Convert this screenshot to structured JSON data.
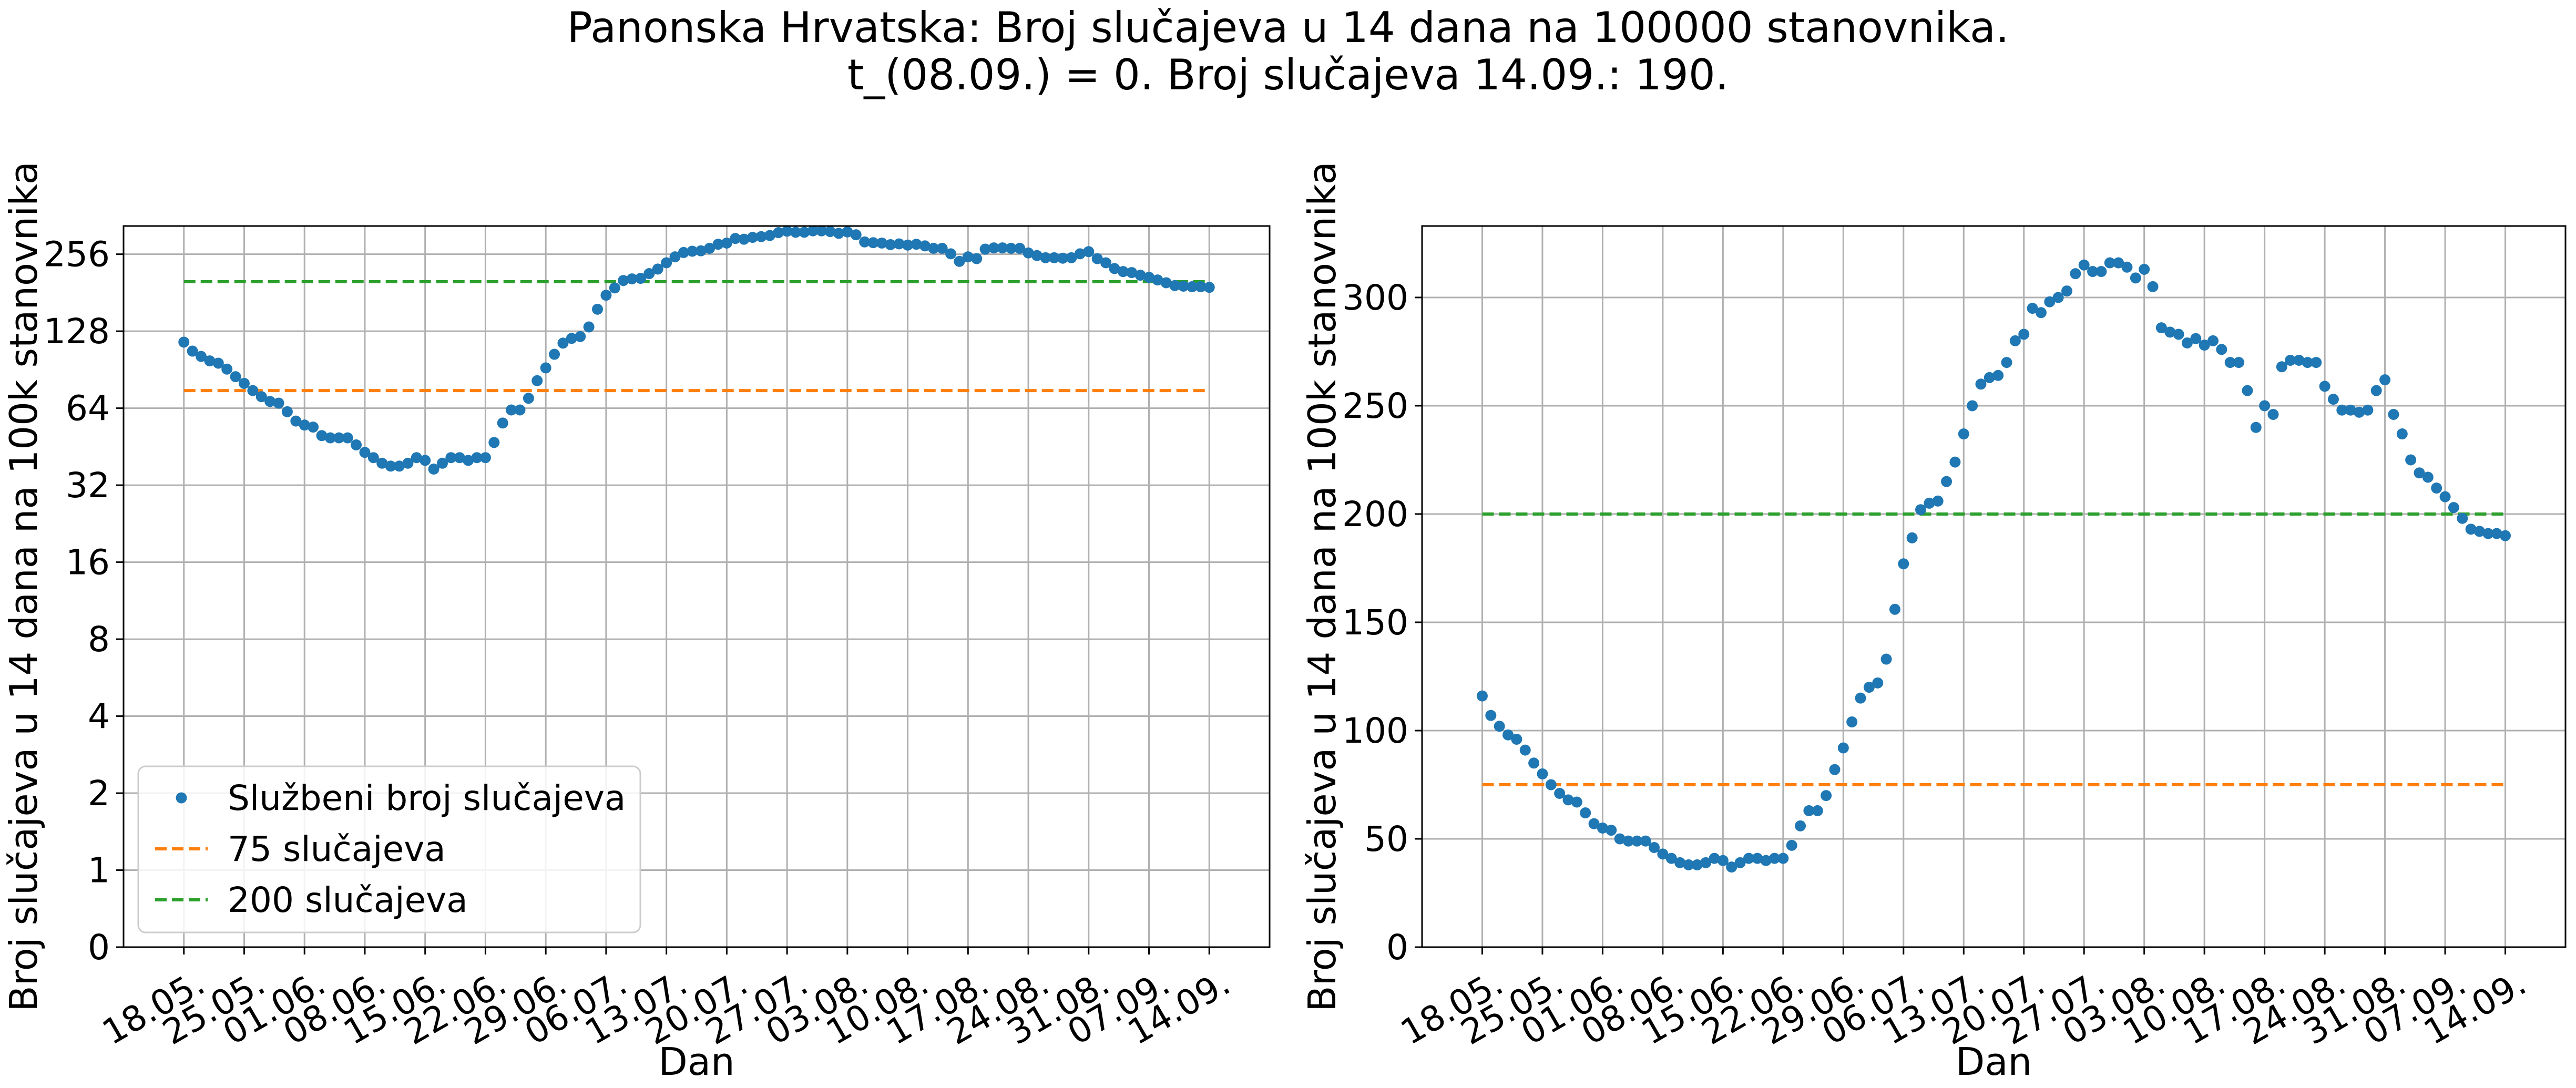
{
  "figure": {
    "title_line1": "Panonska Hrvatska: Broj slučajeva u 14 dana na 100000 stanovnika.",
    "title_line2": "t_(08.09.) = 0. Broj slučajeva 14.09.: 190."
  },
  "colors": {
    "points": "#1f77b4",
    "line75": "#ff7f0e",
    "line200": "#2ca02c"
  },
  "chart_data": [
    {
      "type": "scatter",
      "yscale": "symlog",
      "xlabel": "Dan",
      "ylabel": "Broj slučajeva u 14 dana na 100k stanovnika",
      "x_ticks": [
        "18.05.",
        "25.05.",
        "01.06.",
        "08.06.",
        "15.06.",
        "22.06.",
        "29.06.",
        "06.07.",
        "13.07.",
        "20.07.",
        "27.07.",
        "03.08.",
        "10.08.",
        "17.08.",
        "24.08.",
        "31.08.",
        "07.09.",
        "14.09."
      ],
      "y_ticks": [
        0,
        1,
        2,
        4,
        8,
        16,
        32,
        64,
        128,
        256
      ],
      "y_tick_labels": [
        "0",
        "1",
        "2",
        "4",
        "8",
        "16",
        "32",
        "64",
        "128",
        "256"
      ],
      "ylim": [
        0,
        330
      ],
      "grid": true,
      "legend": {
        "position": "lower-left",
        "entries": [
          "Službeni broj slučajeva",
          "75 slučajeva",
          "200 slučajeva"
        ]
      },
      "series": [
        {
          "name": "Službeni broj slučajeva",
          "kind": "points",
          "x_start": "18.05.",
          "values": [
            116,
            107,
            102,
            98,
            96,
            91,
            85,
            80,
            75,
            71,
            68,
            67,
            62,
            57,
            55,
            54,
            50,
            49,
            49,
            49,
            46,
            43,
            41,
            39,
            38,
            38,
            39,
            41,
            40,
            37,
            39,
            41,
            41,
            40,
            41,
            41,
            47,
            56,
            63,
            63,
            70,
            82,
            92,
            104,
            115,
            120,
            122,
            133,
            156,
            177,
            189,
            202,
            205,
            206,
            215,
            224,
            237,
            250,
            260,
            263,
            264,
            270,
            280,
            283,
            295,
            293,
            298,
            300,
            303,
            311,
            315,
            312,
            312,
            316,
            316,
            314,
            309,
            313,
            305,
            286,
            284,
            283,
            279,
            281,
            278,
            280,
            276,
            270,
            270,
            257,
            240,
            250,
            246,
            268,
            271,
            271,
            270,
            270,
            259,
            253,
            248,
            248,
            247,
            248,
            257,
            262,
            246,
            237,
            225,
            219,
            217,
            212,
            208,
            203,
            198,
            193,
            192,
            191,
            191,
            190
          ]
        },
        {
          "name": "75 slučajeva",
          "kind": "line",
          "value": 75
        },
        {
          "name": "200 slučajeva",
          "kind": "line",
          "value": 200
        }
      ]
    },
    {
      "type": "scatter",
      "yscale": "linear",
      "xlabel": "Dan",
      "ylabel": "Broj slučajeva u 14 dana na 100k stanovnika",
      "x_ticks": [
        "18.05.",
        "25.05.",
        "01.06.",
        "08.06.",
        "15.06.",
        "22.06.",
        "29.06.",
        "06.07.",
        "13.07.",
        "20.07.",
        "27.07.",
        "03.08.",
        "10.08.",
        "17.08.",
        "24.08.",
        "31.08.",
        "07.09.",
        "14.09."
      ],
      "y_ticks": [
        0,
        50,
        100,
        150,
        200,
        250,
        300
      ],
      "y_tick_labels": [
        "0",
        "50",
        "100",
        "150",
        "200",
        "250",
        "300"
      ],
      "ylim": [
        0,
        333
      ],
      "grid": true,
      "series": [
        {
          "name": "Službeni broj slučajeva",
          "kind": "points",
          "x_start": "18.05.",
          "values": [
            116,
            107,
            102,
            98,
            96,
            91,
            85,
            80,
            75,
            71,
            68,
            67,
            62,
            57,
            55,
            54,
            50,
            49,
            49,
            49,
            46,
            43,
            41,
            39,
            38,
            38,
            39,
            41,
            40,
            37,
            39,
            41,
            41,
            40,
            41,
            41,
            47,
            56,
            63,
            63,
            70,
            82,
            92,
            104,
            115,
            120,
            122,
            133,
            156,
            177,
            189,
            202,
            205,
            206,
            215,
            224,
            237,
            250,
            260,
            263,
            264,
            270,
            280,
            283,
            295,
            293,
            298,
            300,
            303,
            311,
            315,
            312,
            312,
            316,
            316,
            314,
            309,
            313,
            305,
            286,
            284,
            283,
            279,
            281,
            278,
            280,
            276,
            270,
            270,
            257,
            240,
            250,
            246,
            268,
            271,
            271,
            270,
            270,
            259,
            253,
            248,
            248,
            247,
            248,
            257,
            262,
            246,
            237,
            225,
            219,
            217,
            212,
            208,
            203,
            198,
            193,
            192,
            191,
            191,
            190
          ]
        },
        {
          "name": "75 slučajeva",
          "kind": "line",
          "value": 75
        },
        {
          "name": "200 slučajeva",
          "kind": "line",
          "value": 200
        }
      ]
    }
  ]
}
